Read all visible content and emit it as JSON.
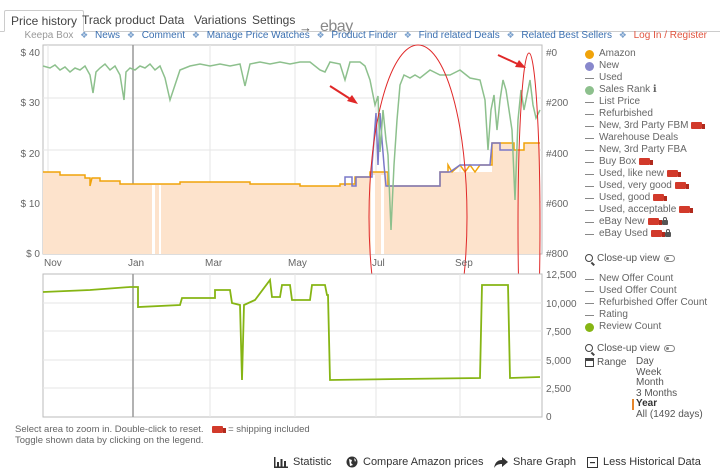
{
  "tabs": [
    {
      "label": "Price history",
      "active": true
    },
    {
      "label": "Track product"
    },
    {
      "label": "Data"
    },
    {
      "label": "Variations"
    },
    {
      "label": "Settings"
    }
  ],
  "tab_arrow": "→",
  "ebay": "ebay",
  "links": {
    "keepa_box": "Keepa Box",
    "items": [
      "News",
      "Comment",
      "Manage Price Watches",
      "Product Finder",
      "Find related Deals",
      "Related Best Sellers"
    ],
    "login": "Log In / Register",
    "sep": "❖"
  },
  "price_chart": {
    "left_axis": [
      "$ 40",
      "$ 30",
      "$ 20",
      "$ 10",
      "$ 0"
    ],
    "right_axis": [
      "#0",
      "#200",
      "#400",
      "#600",
      "#800"
    ],
    "x_labels": [
      "Nov",
      "Jan",
      "Mar",
      "May",
      "Jul",
      "Sep"
    ]
  },
  "count_chart": {
    "right_axis": [
      "12,500",
      "10,000",
      "7,500",
      "5,000",
      "2,500",
      "0"
    ]
  },
  "legend_top": [
    {
      "label": "Amazon",
      "type": "dot",
      "color": "#f0a30a"
    },
    {
      "label": "New",
      "type": "dot",
      "color": "#8888cc"
    },
    {
      "label": "Used",
      "type": "dash"
    },
    {
      "label": "Sales Rank",
      "type": "dot",
      "color": "#8dc08d",
      "extra": "ℹ"
    },
    {
      "label": "List Price",
      "type": "dash"
    },
    {
      "label": "Refurbished",
      "type": "dash"
    },
    {
      "label": "New, 3rd Party FBM",
      "type": "dash",
      "truck": true
    },
    {
      "label": "Warehouse Deals",
      "type": "dash"
    },
    {
      "label": "New, 3rd Party FBA",
      "type": "dash"
    },
    {
      "label": "Buy Box",
      "type": "dash",
      "truck": true
    },
    {
      "label": "Used, like new",
      "type": "dash",
      "truck": true
    },
    {
      "label": "Used, very good",
      "type": "dash",
      "truck": true
    },
    {
      "label": "Used, good",
      "type": "dash",
      "truck": true
    },
    {
      "label": "Used, acceptable",
      "type": "dash",
      "truck": true
    },
    {
      "label": "eBay New",
      "type": "dash",
      "truck": true,
      "lock": true
    },
    {
      "label": "eBay Used",
      "type": "dash",
      "truck": true,
      "lock": true
    }
  ],
  "closeup_label": "Close-up view",
  "legend_bottom": [
    {
      "label": "New Offer Count",
      "type": "dash"
    },
    {
      "label": "Used Offer Count",
      "type": "dash"
    },
    {
      "label": "Refurbished Offer Count",
      "type": "dash"
    },
    {
      "label": "Rating",
      "type": "dash"
    },
    {
      "label": "Review Count",
      "type": "dot",
      "color": "#86b514"
    }
  ],
  "range": {
    "label": "Range",
    "options": [
      "Day",
      "Week",
      "Month",
      "3 Months",
      "Year",
      "All (1492 days)"
    ],
    "selected": "Year"
  },
  "help": {
    "line1": "Select area to zoom in. Double-click to reset.",
    "shipping": "= shipping included",
    "line2": "Toggle shown data by clicking on the legend."
  },
  "bottom": {
    "statistic": "Statistic",
    "compare": "Compare Amazon prices",
    "share": "Share Graph",
    "less": "Less Historical Data"
  },
  "colors": {
    "amazon": "#f0a30a",
    "new": "#7a78c8",
    "sales_rank": "#8dc08d",
    "review_count": "#86b514",
    "annotation": "#e02828",
    "area_fill": "#fde3cc"
  }
}
